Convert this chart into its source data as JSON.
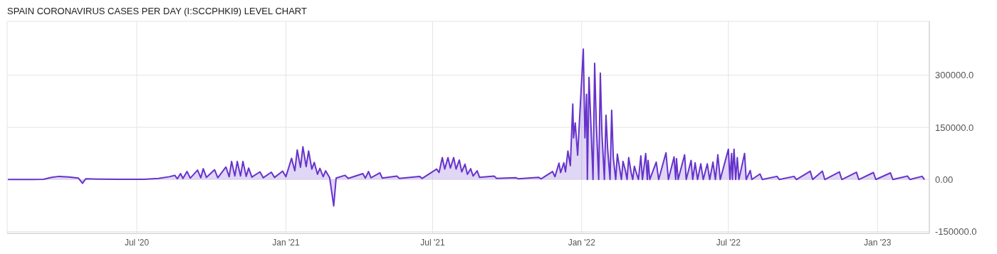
{
  "chart_data": {
    "type": "area",
    "title": "SPAIN CORONAVIRUS CASES PER DAY (I:SCCPHKI9) LEVEL CHART",
    "x": [
      "2020-01-24",
      "2020-02-25",
      "2020-03-08",
      "2020-03-18",
      "2020-03-27",
      "2020-04-08",
      "2020-04-20",
      "2020-04-25",
      "2020-04-29",
      "2020-05-15",
      "2020-06-10",
      "2020-07-10",
      "2020-07-28",
      "2020-08-10",
      "2020-08-17",
      "2020-08-20",
      "2020-08-24",
      "2020-08-27",
      "2020-09-01",
      "2020-09-05",
      "2020-09-14",
      "2020-09-18",
      "2020-09-21",
      "2020-09-25",
      "2020-10-05",
      "2020-10-09",
      "2020-10-19",
      "2020-10-23",
      "2020-10-26",
      "2020-10-30",
      "2020-11-02",
      "2020-11-06",
      "2020-11-09",
      "2020-11-13",
      "2020-11-16",
      "2020-11-20",
      "2020-11-30",
      "2020-12-04",
      "2020-12-14",
      "2020-12-18",
      "2020-12-28",
      "2021-01-01",
      "2021-01-08",
      "2021-01-12",
      "2021-01-15",
      "2021-01-19",
      "2021-01-22",
      "2021-01-26",
      "2021-01-29",
      "2021-02-02",
      "2021-02-05",
      "2021-02-09",
      "2021-02-12",
      "2021-02-16",
      "2021-02-19",
      "2021-02-24",
      "2021-03-01",
      "2021-03-04",
      "2021-03-15",
      "2021-03-19",
      "2021-04-06",
      "2021-04-09",
      "2021-04-13",
      "2021-04-16",
      "2021-04-27",
      "2021-04-30",
      "2021-05-18",
      "2021-05-21",
      "2021-06-15",
      "2021-06-18",
      "2021-07-06",
      "2021-07-09",
      "2021-07-13",
      "2021-07-16",
      "2021-07-20",
      "2021-07-23",
      "2021-07-27",
      "2021-07-30",
      "2021-08-03",
      "2021-08-06",
      "2021-08-10",
      "2021-08-13",
      "2021-08-17",
      "2021-08-20",
      "2021-08-25",
      "2021-08-28",
      "2021-09-15",
      "2021-09-18",
      "2021-10-12",
      "2021-10-15",
      "2021-11-09",
      "2021-11-12",
      "2021-11-26",
      "2021-11-29",
      "2021-12-04",
      "2021-12-06",
      "2021-12-10",
      "2021-12-12",
      "2021-12-15",
      "2021-12-18",
      "2021-12-21",
      "2021-12-22",
      "2021-12-24",
      "2021-12-27",
      "2022-01-03",
      "2022-01-05",
      "2022-01-07",
      "2022-01-08",
      "2022-01-10",
      "2022-01-12",
      "2022-01-15",
      "2022-01-17",
      "2022-01-19",
      "2022-01-22",
      "2022-01-24",
      "2022-01-26",
      "2022-01-29",
      "2022-01-31",
      "2022-02-02",
      "2022-02-05",
      "2022-02-07",
      "2022-02-09",
      "2022-02-12",
      "2022-02-14",
      "2022-02-17",
      "2022-02-19",
      "2022-02-21",
      "2022-02-24",
      "2022-02-26",
      "2022-02-28",
      "2022-03-03",
      "2022-03-05",
      "2022-03-07",
      "2022-03-10",
      "2022-03-12",
      "2022-03-15",
      "2022-03-17",
      "2022-03-21",
      "2022-03-23",
      "2022-03-24",
      "2022-03-26",
      "2022-04-03",
      "2022-04-06",
      "2022-04-15",
      "2022-04-18",
      "2022-04-25",
      "2022-04-27",
      "2022-04-28",
      "2022-04-30",
      "2022-05-08",
      "2022-05-10",
      "2022-05-16",
      "2022-05-18",
      "2022-05-21",
      "2022-05-24",
      "2022-05-28",
      "2022-05-31",
      "2022-06-05",
      "2022-06-08",
      "2022-06-12",
      "2022-06-15",
      "2022-06-18",
      "2022-06-21",
      "2022-07-01",
      "2022-07-03",
      "2022-07-05",
      "2022-07-06",
      "2022-07-08",
      "2022-07-10",
      "2022-07-12",
      "2022-07-14",
      "2022-07-21",
      "2022-07-23",
      "2022-07-28",
      "2022-07-30",
      "2022-08-09",
      "2022-08-12",
      "2022-08-30",
      "2022-09-02",
      "2022-09-20",
      "2022-09-23",
      "2022-10-10",
      "2022-10-13",
      "2022-10-25",
      "2022-10-28",
      "2022-11-15",
      "2022-11-18",
      "2022-12-06",
      "2022-12-09",
      "2022-12-27",
      "2022-12-30",
      "2023-01-17",
      "2023-01-20",
      "2023-02-07",
      "2023-02-10",
      "2023-02-25",
      "2023-02-28"
    ],
    "series": [
      {
        "color": "#6633cc",
        "values": [
          0,
          0,
          500,
          6000,
          9000,
          7000,
          4000,
          -11000,
          2000,
          1000,
          500,
          800,
          3000,
          8000,
          12000,
          2000,
          17000,
          3000,
          23000,
          4000,
          27000,
          5000,
          31000,
          6000,
          28000,
          5000,
          36000,
          8000,
          52000,
          10000,
          52000,
          10000,
          52000,
          9000,
          33000,
          7000,
          22000,
          5000,
          21000,
          6000,
          24000,
          8000,
          61000,
          25000,
          85000,
          35000,
          94000,
          37000,
          82000,
          30000,
          49000,
          15000,
          32000,
          8000,
          25000,
          5000,
          -76000,
          4000,
          12000,
          3000,
          17000,
          4000,
          23000,
          5000,
          19000,
          4000,
          10000,
          3000,
          9000,
          3000,
          30000,
          20000,
          63000,
          30000,
          63000,
          33000,
          63000,
          30000,
          56000,
          22000,
          44000,
          15000,
          31000,
          10000,
          25000,
          6000,
          10000,
          3000,
          5000,
          2000,
          6000,
          2000,
          23000,
          8000,
          47000,
          20000,
          48000,
          22000,
          82000,
          40000,
          217000,
          120000,
          163000,
          70000,
          375000,
          120000,
          245000,
          0,
          294000,
          180000,
          0,
          334000,
          160000,
          0,
          306000,
          131000,
          0,
          185000,
          89000,
          0,
          199000,
          63000,
          0,
          73000,
          30000,
          0,
          52000,
          25000,
          0,
          63000,
          20000,
          0,
          38000,
          15000,
          0,
          68000,
          0,
          75000,
          0,
          55000,
          0,
          50000,
          0,
          77000,
          0,
          65000,
          0,
          60000,
          0,
          71000,
          0,
          55000,
          0,
          48000,
          0,
          45000,
          0,
          45000,
          0,
          50000,
          0,
          71000,
          0,
          87000,
          0,
          75000,
          0,
          87000,
          0,
          63000,
          0,
          75000,
          0,
          26000,
          0,
          16000,
          0,
          9000,
          0,
          9000,
          0,
          24000,
          0,
          24000,
          0,
          22000,
          0,
          21000,
          0,
          20000,
          0,
          19000,
          0,
          10000,
          0,
          9000,
          0
        ]
      }
    ],
    "xlim": [
      "2020-01-23",
      "2023-03-06"
    ],
    "xticks": [
      {
        "value": "2020-07-01",
        "label": "Jul '20"
      },
      {
        "value": "2021-01-01",
        "label": "Jan '21"
      },
      {
        "value": "2021-07-01",
        "label": "Jul '21"
      },
      {
        "value": "2022-01-01",
        "label": "Jan '22"
      },
      {
        "value": "2022-07-01",
        "label": "Jul '22"
      },
      {
        "value": "2023-01-01",
        "label": "Jan '23"
      }
    ],
    "ylim": [
      -155000,
      455000
    ],
    "yticks": [
      {
        "value": -150000,
        "label": "-150000.0"
      },
      {
        "value": 0,
        "label": "0.00"
      },
      {
        "value": 150000,
        "label": "150000.0"
      },
      {
        "value": 300000,
        "label": "300000.0"
      }
    ],
    "grid": true,
    "legend": false,
    "marker": "none",
    "line_style": "solid"
  }
}
